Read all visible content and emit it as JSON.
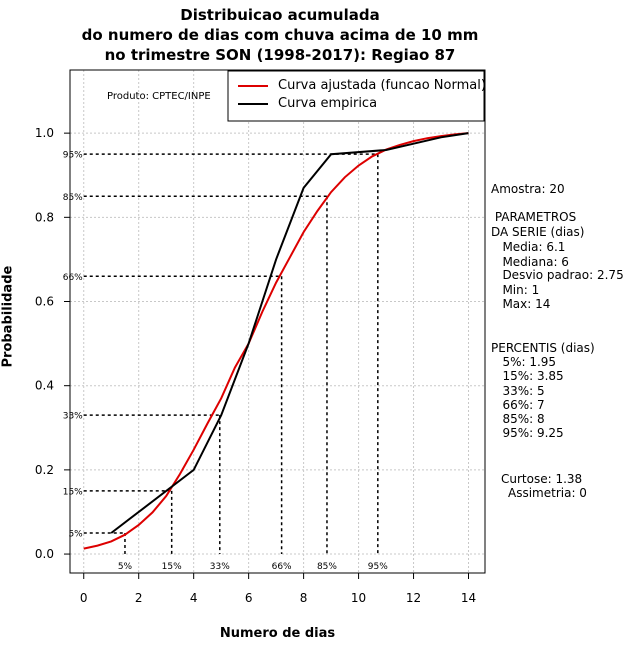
{
  "chart_data": {
    "type": "line",
    "title_lines": [
      "Distribuicao acumulada",
      "do numero de dias com chuva acima de 10 mm",
      "no trimestre SON (1998-2017): Regiao 87"
    ],
    "xlabel": "Numero de dias",
    "ylabel": "Probabilidade",
    "xlim": [
      -0.5,
      14.6
    ],
    "ylim": [
      -0.045,
      1.15
    ],
    "x_ticks": [
      0,
      2,
      4,
      6,
      8,
      10,
      12,
      14
    ],
    "y_ticks": [
      0.0,
      0.2,
      0.4,
      0.6,
      0.8,
      1.0
    ],
    "y_tick_labels": [
      "0.0",
      "0.2",
      "0.4",
      "0.6",
      "0.8",
      "1.0"
    ],
    "grid": true,
    "legend_position": "top-right",
    "series": [
      {
        "name": "Curva ajustada (funcao Normal)",
        "color": "#dd0000",
        "x": [
          0,
          0.5,
          1,
          1.5,
          2,
          2.5,
          3,
          3.5,
          4,
          4.5,
          5,
          5.5,
          6,
          6.5,
          7,
          7.5,
          8,
          8.5,
          9,
          9.5,
          10,
          10.5,
          11,
          11.5,
          12,
          12.5,
          13,
          13.5,
          14
        ],
        "y": [
          0.013,
          0.02,
          0.03,
          0.046,
          0.069,
          0.099,
          0.138,
          0.19,
          0.248,
          0.31,
          0.37,
          0.443,
          0.5,
          0.576,
          0.645,
          0.705,
          0.765,
          0.815,
          0.86,
          0.895,
          0.923,
          0.945,
          0.961,
          0.972,
          0.981,
          0.988,
          0.993,
          0.997,
          1.0
        ]
      },
      {
        "name": "Curva empirica",
        "color": "#000000",
        "x": [
          1,
          4,
          5,
          6,
          7,
          8,
          9,
          11,
          12,
          13,
          14
        ],
        "y": [
          0.05,
          0.2,
          0.33,
          0.5,
          0.7,
          0.87,
          0.95,
          0.96,
          0.975,
          0.99,
          1.0
        ]
      }
    ],
    "percentile_lines": [
      {
        "label": "5%",
        "p": 0.05,
        "x": 1.5
      },
      {
        "label": "15%",
        "p": 0.15,
        "x": 3.2
      },
      {
        "label": "33%",
        "p": 0.33,
        "x": 4.95
      },
      {
        "label": "66%",
        "p": 0.66,
        "x": 7.2
      },
      {
        "label": "85%",
        "p": 0.85,
        "x": 8.85
      },
      {
        "label": "95%",
        "p": 0.95,
        "x": 10.7
      }
    ],
    "annotation": "Produto: CPTEC/INPE"
  },
  "stats": {
    "amostra": "Amostra: 20",
    "parametros": [
      " PARAMETROS",
      "DA SERIE (dias)",
      "   Media: 6.1",
      "   Mediana: 6",
      "   Desvio padrao: 2.75",
      "   Min: 1",
      "   Max: 14"
    ],
    "percentis": [
      "PERCENTIS (dias)",
      "   5%: 1.95",
      "   15%: 3.85",
      "   33%: 5",
      "   66%: 7",
      "   85%: 8",
      "   95%: 9.25"
    ],
    "curtose": "Curtose: 1.38",
    "assimetria": "Assimetria: 0"
  }
}
